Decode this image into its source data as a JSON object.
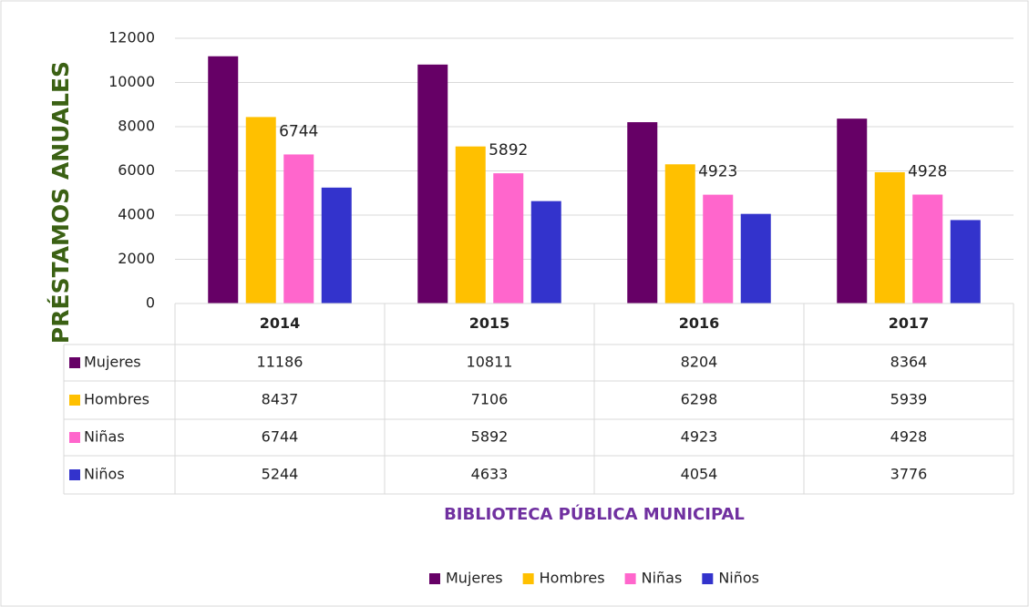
{
  "chart_data": {
    "type": "bar",
    "y_label": "PRÉSTAMOS ANUALES",
    "x_label": "BIBLIOTECA PÚBLICA MUNICIPAL",
    "categories": [
      "2014",
      "2015",
      "2016",
      "2017"
    ],
    "series": [
      {
        "name": "Mujeres",
        "color": "#660066",
        "values": [
          11186,
          10811,
          8204,
          8364
        ]
      },
      {
        "name": "Hombres",
        "color": "#ffc000",
        "values": [
          8437,
          7106,
          6298,
          5939
        ]
      },
      {
        "name": "Niñas",
        "color": "#ff66cc",
        "values": [
          6744,
          5892,
          4923,
          4928
        ],
        "show_labels": true
      },
      {
        "name": "Niños",
        "color": "#3333cc",
        "values": [
          5244,
          4633,
          4054,
          3776
        ]
      }
    ],
    "ylim": [
      0,
      12000
    ],
    "yticks": [
      0,
      2000,
      4000,
      6000,
      8000,
      10000,
      12000
    ],
    "grid": true,
    "data_table": true,
    "legend": "bottom"
  }
}
